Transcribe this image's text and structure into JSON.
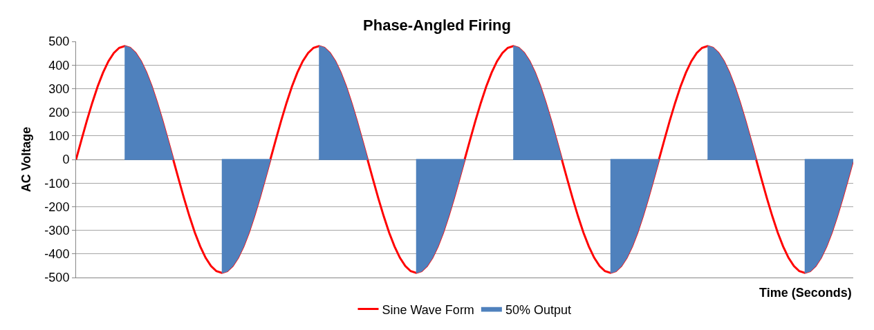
{
  "chart_data": {
    "type": "area",
    "title": "Phase-Angled Firing",
    "xlabel": "Time (Seconds)",
    "ylabel": "AC Voltage",
    "categories": [
      null,
      null,
      null,
      null,
      null,
      null,
      null,
      null,
      null,
      null,
      null,
      null,
      null,
      null,
      null,
      null,
      null,
      null,
      null,
      null,
      null,
      null,
      null,
      null,
      null,
      null,
      null,
      null,
      null,
      null,
      null,
      null,
      null,
      null,
      null,
      null,
      null,
      null,
      null,
      null,
      null,
      null,
      null,
      null,
      null,
      null,
      null,
      null,
      null,
      null,
      null,
      null,
      null,
      null,
      null,
      null,
      null,
      null,
      null,
      null,
      null,
      null,
      null,
      null,
      null,
      null,
      null,
      null,
      null,
      null,
      null,
      null,
      null,
      null,
      null,
      null,
      null,
      null,
      null,
      null,
      null,
      null,
      null,
      null,
      null,
      null,
      null,
      null,
      null,
      null,
      null,
      null,
      null,
      null,
      null,
      null,
      null,
      null,
      null,
      null,
      null,
      null,
      null,
      null,
      null,
      null,
      null,
      null,
      null,
      null,
      null,
      null,
      null,
      null,
      null,
      null,
      null,
      null,
      null,
      null,
      null,
      null,
      null,
      null,
      null,
      null,
      null,
      null,
      null,
      null,
      null,
      null,
      null,
      null,
      null,
      null,
      null,
      null,
      null,
      null,
      null,
      null,
      null,
      null,
      null
    ],
    "series": [
      {
        "name": "Sine Wave Form",
        "type": "line",
        "color": "#ff0000",
        "values": [
          0,
          83,
          164,
          240,
          309,
          368,
          416,
          451,
          473,
          480,
          473,
          451,
          416,
          368,
          309,
          240,
          164,
          83,
          0,
          -83,
          -164,
          -240,
          -309,
          -368,
          -416,
          -451,
          -473,
          -480,
          -473,
          -451,
          -416,
          -368,
          -309,
          -240,
          -164,
          -83,
          0,
          83,
          164,
          240,
          309,
          368,
          416,
          451,
          473,
          480,
          473,
          451,
          416,
          368,
          309,
          240,
          164,
          83,
          0,
          -83,
          -164,
          -240,
          -309,
          -368,
          -416,
          -451,
          -473,
          -480,
          -473,
          -451,
          -416,
          -368,
          -309,
          -240,
          -164,
          -83,
          0,
          83,
          164,
          240,
          309,
          368,
          416,
          451,
          473,
          480,
          473,
          451,
          416,
          368,
          309,
          240,
          164,
          83,
          0,
          -83,
          -164,
          -240,
          -309,
          -368,
          -416,
          -451,
          -473,
          -480,
          -473,
          -451,
          -416,
          -368,
          -309,
          -240,
          -164,
          -83,
          0,
          83,
          164,
          240,
          309,
          368,
          416,
          451,
          473,
          480,
          473,
          451,
          416,
          368,
          309,
          240,
          164,
          83,
          0,
          -83,
          -164,
          -240,
          -309,
          -368,
          -416,
          -451,
          -473,
          -480,
          -473,
          -451,
          -416,
          -368,
          -309,
          -240,
          -164,
          -83,
          0
        ]
      },
      {
        "name": "50% Output",
        "color": "#4f81bd",
        "values": [
          null,
          null,
          null,
          null,
          null,
          null,
          null,
          null,
          null,
          480,
          473,
          451,
          416,
          368,
          309,
          240,
          164,
          83,
          0,
          null,
          null,
          null,
          null,
          null,
          null,
          null,
          null,
          -480,
          -473,
          -451,
          -416,
          -368,
          -309,
          -240,
          -164,
          -83,
          0,
          null,
          null,
          null,
          null,
          null,
          null,
          null,
          null,
          480,
          473,
          451,
          416,
          368,
          309,
          240,
          164,
          83,
          0,
          null,
          null,
          null,
          null,
          null,
          null,
          null,
          null,
          -480,
          -473,
          -451,
          -416,
          -368,
          -309,
          -240,
          -164,
          -83,
          0,
          null,
          null,
          null,
          null,
          null,
          null,
          null,
          null,
          480,
          473,
          451,
          416,
          368,
          309,
          240,
          164,
          83,
          0,
          null,
          null,
          null,
          null,
          null,
          null,
          null,
          null,
          -480,
          -473,
          -451,
          -416,
          -368,
          -309,
          -240,
          -164,
          -83,
          0,
          null,
          null,
          null,
          null,
          null,
          null,
          null,
          null,
          480,
          473,
          451,
          416,
          368,
          309,
          240,
          164,
          83,
          0,
          null,
          null,
          null,
          null,
          null,
          null,
          null,
          null,
          -480,
          -473,
          -451,
          -416,
          -368,
          -309,
          -240,
          -164,
          -83,
          0
        ]
      }
    ],
    "ylim": [
      -500,
      500
    ],
    "yticks": [
      -500,
      -400,
      -300,
      -200,
      -100,
      0,
      100,
      200,
      300,
      400,
      500
    ],
    "grid": "y",
    "legend": "bottom",
    "tick_labels": "y"
  }
}
